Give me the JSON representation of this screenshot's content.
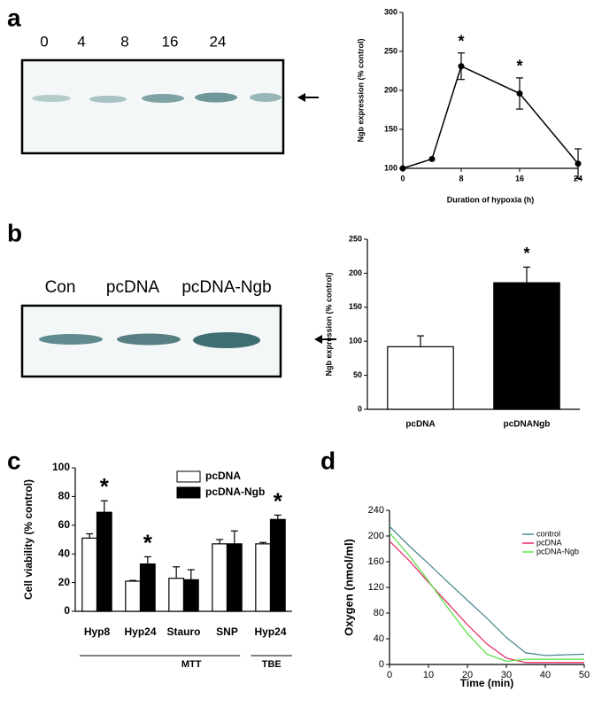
{
  "panels": [
    "a",
    "b",
    "c",
    "d"
  ],
  "blots": [
    {
      "lanes": [
        "0",
        "4",
        "8",
        "16",
        "24"
      ]
    },
    {
      "lanes": [
        "Con",
        "pcDNA",
        "pcDNA-Ngb"
      ]
    }
  ],
  "chart_data": [
    {
      "type": "line",
      "y_label": "Ngb expression (% control)",
      "x_label": "Duration of hypoxia (h)",
      "x": [
        0,
        4,
        8,
        16,
        24
      ],
      "values": [
        100,
        112,
        231,
        196,
        106
      ],
      "errors": [
        null,
        null,
        17,
        20,
        19
      ],
      "color": "#000000",
      "xlim": [
        0,
        24
      ],
      "xticks": [
        0,
        8,
        16,
        24
      ],
      "ylim": [
        100,
        300
      ],
      "yticks": [
        100,
        150,
        200,
        250,
        300
      ],
      "annotations": [
        {
          "text": "*",
          "index": 2
        },
        {
          "text": "*",
          "index": 3
        }
      ]
    },
    {
      "type": "bar",
      "y_label": "Ngb expression (% control)",
      "categories": [
        "pcDNA",
        "pcDNANgb"
      ],
      "values": [
        92,
        186
      ],
      "errors": [
        16,
        23
      ],
      "colors": [
        "#ffffff",
        "#000000"
      ],
      "ylim": [
        0,
        250
      ],
      "yticks": [
        0,
        50,
        100,
        150,
        200,
        250
      ],
      "annotations": [
        {
          "text": "*",
          "index": 1
        }
      ]
    },
    {
      "type": "bar",
      "y_label": "Cell viability (% control)",
      "categories": [
        "Hyp8",
        "Hyp24",
        "Stauro",
        "SNP",
        "Hyp24"
      ],
      "series": [
        {
          "name": "pcDNA",
          "color": "#ffffff",
          "values": [
            51,
            21,
            23,
            47,
            47
          ],
          "errors": [
            3,
            0.5,
            8,
            3,
            1
          ]
        },
        {
          "name": "pcDNA-Ngb",
          "color": "#000000",
          "values": [
            69,
            33,
            22,
            47,
            64
          ],
          "errors": [
            8,
            5,
            7,
            9,
            3
          ]
        }
      ],
      "ylim": [
        0,
        100
      ],
      "yticks": [
        0,
        20,
        40,
        60,
        80,
        100
      ],
      "group_labels": [
        "MTT",
        "TBE"
      ],
      "annotations": [
        {
          "text": "*",
          "series": 1,
          "index": 0
        },
        {
          "text": "*",
          "series": 1,
          "index": 1
        },
        {
          "text": "*",
          "series": 1,
          "index": 4
        }
      ]
    },
    {
      "type": "line",
      "y_label": "Oxygen (nmol/ml)",
      "x_label": "Time (min)",
      "x": [
        0,
        5,
        10,
        15,
        20,
        25,
        30,
        35,
        40,
        45,
        50
      ],
      "series": [
        {
          "name": "control",
          "color": "#4f8a93",
          "values": [
            215,
            185,
            157,
            128,
            100,
            72,
            42,
            18,
            14,
            15,
            16
          ]
        },
        {
          "name": "pcDNA",
          "color": "#e8306c",
          "values": [
            192,
            162,
            128,
            95,
            62,
            32,
            10,
            3,
            3,
            3,
            3
          ]
        },
        {
          "name": "pcDNA-Ngb",
          "color": "#5ee04a",
          "values": [
            205,
            170,
            130,
            88,
            48,
            16,
            5,
            8,
            8,
            8,
            8
          ]
        }
      ],
      "xlim": [
        0,
        50
      ],
      "xticks": [
        0,
        10,
        20,
        30,
        40,
        50
      ],
      "ylim": [
        0,
        240
      ],
      "yticks": [
        0,
        40,
        80,
        120,
        160,
        200,
        240
      ]
    }
  ]
}
